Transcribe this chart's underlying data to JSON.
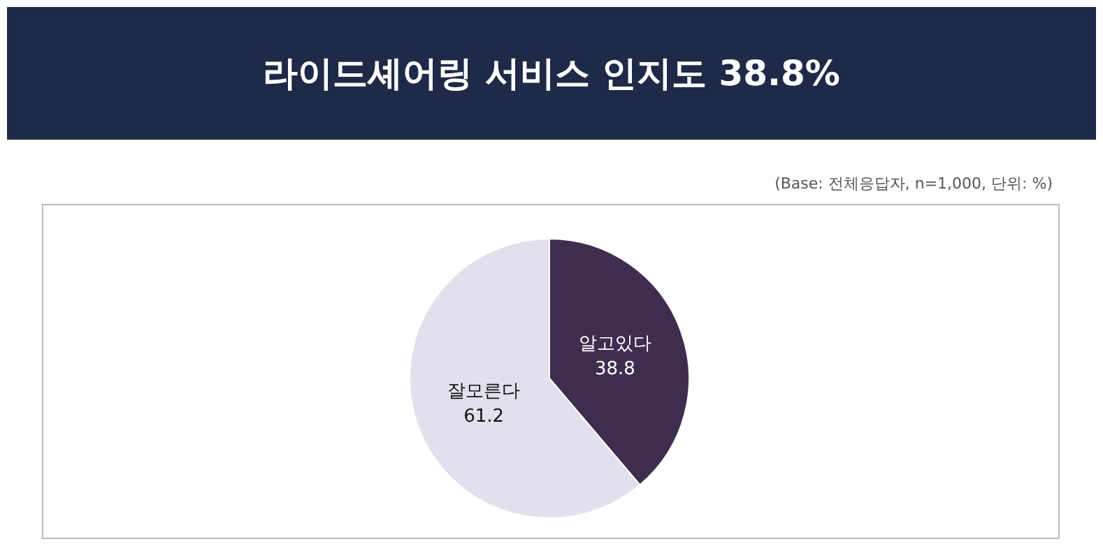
{
  "chart_data": {
    "type": "pie",
    "title": "라이드셰어링 서비스 인지도 38.8%",
    "annotations": [
      "(Base: 전체응답자, n=1,000, 단위: %)"
    ],
    "categories": [
      "알고있다",
      "잘모른다"
    ],
    "values": [
      38.8,
      61.2
    ],
    "colors": [
      "#3f2d4f",
      "#e4dfec"
    ],
    "data_labels": true,
    "legend": false
  }
}
